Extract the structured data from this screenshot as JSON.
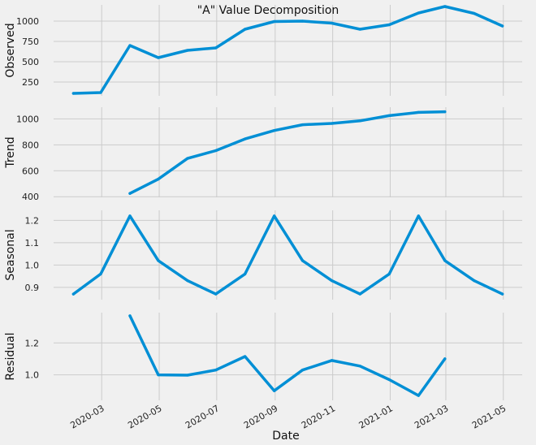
{
  "chart_data": [
    {
      "type": "line",
      "title": "\"A\" Value Decomposition",
      "ylabel": "Observed",
      "ylim": [
        80,
        1200
      ],
      "yticks": [
        250,
        500,
        750,
        1000
      ],
      "grid": true,
      "color": "#008fd5",
      "series": [
        {
          "x": [
            "2020-01-31",
            "2020-02-29",
            "2020-03-31",
            "2020-04-30",
            "2020-05-31",
            "2020-06-30",
            "2020-07-31",
            "2020-08-31",
            "2020-09-30",
            "2020-10-31",
            "2020-11-30",
            "2020-12-31",
            "2021-01-31",
            "2021-02-28",
            "2021-03-31",
            "2021-04-30"
          ],
          "values": [
            110,
            120,
            700,
            550,
            640,
            670,
            900,
            995,
            1000,
            975,
            900,
            955,
            1100,
            1180,
            1095,
            940
          ]
        }
      ]
    },
    {
      "type": "line",
      "ylabel": "Trend",
      "ylim": [
        395,
        1090
      ],
      "yticks": [
        400,
        600,
        800,
        1000
      ],
      "grid": true,
      "color": "#008fd5",
      "series": [
        {
          "x": [
            "2020-03-31",
            "2020-04-30",
            "2020-05-31",
            "2020-06-30",
            "2020-07-31",
            "2020-08-31",
            "2020-09-30",
            "2020-10-31",
            "2020-11-30",
            "2020-12-31",
            "2021-01-31",
            "2021-02-28"
          ],
          "values": [
            425,
            535,
            695,
            755,
            845,
            910,
            955,
            965,
            985,
            1025,
            1050,
            1055
          ]
        }
      ]
    },
    {
      "type": "line",
      "ylabel": "Seasonal",
      "ylim": [
        0.845,
        1.245
      ],
      "yticks": [
        0.9,
        1.0,
        1.1,
        1.2
      ],
      "grid": true,
      "color": "#008fd5",
      "series": [
        {
          "x": [
            "2020-01-31",
            "2020-02-29",
            "2020-03-31",
            "2020-04-30",
            "2020-05-31",
            "2020-06-30",
            "2020-07-31",
            "2020-08-31",
            "2020-09-30",
            "2020-10-31",
            "2020-11-30",
            "2020-12-31",
            "2021-01-31",
            "2021-02-28",
            "2021-03-31",
            "2021-04-30"
          ],
          "values": [
            0.87,
            0.96,
            1.22,
            1.02,
            0.93,
            0.87,
            0.96,
            1.22,
            1.02,
            0.93,
            0.87,
            0.96,
            1.22,
            1.02,
            0.93,
            0.87
          ]
        }
      ]
    },
    {
      "type": "line",
      "ylabel": "Residual",
      "xlabel": "Date",
      "ylim": [
        0.84,
        1.39
      ],
      "yticks": [
        1.0,
        1.2
      ],
      "grid": true,
      "color": "#008fd5",
      "series": [
        {
          "x": [
            "2020-03-31",
            "2020-04-30",
            "2020-05-31",
            "2020-06-30",
            "2020-07-31",
            "2020-08-31",
            "2020-09-30",
            "2020-10-31",
            "2020-11-30",
            "2020-12-31",
            "2021-01-31",
            "2021-02-28"
          ],
          "values": [
            1.37,
            1.0,
            0.998,
            1.03,
            1.115,
            0.9,
            1.03,
            1.09,
            1.055,
            0.97,
            0.87,
            1.1
          ]
        }
      ],
      "xticks": [
        "2020-03",
        "2020-05",
        "2020-07",
        "2020-09",
        "2020-11",
        "2021-01",
        "2021-03",
        "2021-05"
      ]
    }
  ]
}
